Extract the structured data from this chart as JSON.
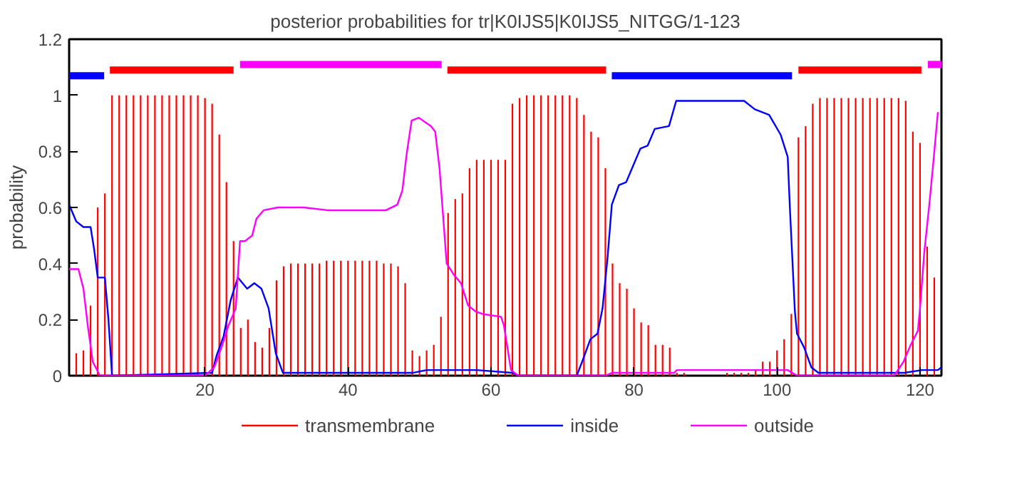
{
  "chart_data": {
    "type": "bar",
    "title": "posterior probabilities for tr|K0IJS5|K0IJS5_NITGG/1-123",
    "ylabel": "probability",
    "xlim": [
      1,
      123
    ],
    "xticks": [
      20,
      40,
      60,
      80,
      100,
      120
    ],
    "ylim": [
      0,
      1.2
    ],
    "yticks": [
      0,
      0.2,
      0.4,
      0.6,
      0.8,
      1,
      1.2
    ],
    "legend": "bottom",
    "series": [
      {
        "name": "transmembrane",
        "color": "#ff0000",
        "x": [
          2,
          3,
          4,
          5,
          6,
          7,
          8,
          9,
          10,
          11,
          12,
          13,
          14,
          15,
          16,
          17,
          18,
          19,
          20,
          21,
          22,
          23,
          24,
          25,
          26,
          27,
          28,
          29,
          30,
          31,
          32,
          33,
          34,
          35,
          36,
          37,
          38,
          39,
          40,
          41,
          42,
          43,
          44,
          45,
          46,
          47,
          48,
          49,
          50,
          51,
          52,
          53,
          54,
          55,
          56,
          57,
          58,
          59,
          60,
          61,
          62,
          63,
          64,
          65,
          66,
          67,
          68,
          69,
          70,
          71,
          72,
          73,
          74,
          75,
          76,
          77,
          78,
          79,
          80,
          81,
          82,
          83,
          84,
          85,
          86,
          87,
          88,
          89,
          90,
          91,
          92,
          93,
          94,
          95,
          96,
          97,
          98,
          99,
          100,
          101,
          102,
          103,
          104,
          105,
          106,
          107,
          108,
          109,
          110,
          111,
          112,
          113,
          114,
          115,
          116,
          117,
          118,
          119,
          120,
          121,
          122
        ],
        "values": [
          0.08,
          0.09,
          0.25,
          0.6,
          0.65,
          1,
          1,
          1,
          1,
          1,
          1,
          1,
          1,
          1,
          1,
          1,
          1,
          1,
          0.99,
          0.97,
          0.86,
          0.69,
          0.48,
          0.17,
          0.2,
          0.12,
          0.1,
          0.17,
          0.34,
          0.39,
          0.4,
          0.4,
          0.4,
          0.4,
          0.4,
          0.41,
          0.41,
          0.41,
          0.41,
          0.41,
          0.41,
          0.41,
          0.41,
          0.4,
          0.4,
          0.39,
          0.33,
          0.09,
          0.07,
          0.09,
          0.11,
          0.21,
          0.58,
          0.63,
          0.65,
          0.74,
          0.77,
          0.77,
          0.77,
          0.77,
          0.77,
          0.97,
          0.99,
          1,
          1,
          1,
          1,
          1,
          1,
          1,
          0.99,
          0.93,
          0.87,
          0.85,
          0.74,
          0.4,
          0.33,
          0.31,
          0.24,
          0.19,
          0.18,
          0.11,
          0.11,
          0.1,
          0.01,
          0.01,
          0,
          0,
          0,
          0,
          0,
          0.01,
          0.01,
          0.01,
          0.01,
          0.02,
          0.05,
          0.05,
          0.09,
          0.13,
          0.22,
          0.85,
          0.89,
          0.97,
          0.99,
          0.99,
          0.99,
          0.99,
          0.99,
          0.99,
          0.99,
          0.99,
          0.99,
          0.99,
          0.99,
          0.99,
          0.98,
          0.87,
          0.83,
          0.46,
          0.35
        ]
      },
      {
        "name": "inside",
        "type": "line",
        "color": "#0000ff",
        "x": [
          1,
          2,
          3,
          4,
          4.5,
          5,
          6,
          6.5,
          7,
          21,
          21.6,
          22.6,
          23.6,
          24.6,
          25.9,
          26.9,
          27.9,
          28.9,
          29.9,
          30.9,
          48,
          49,
          51,
          58,
          63,
          64,
          72,
          72.9,
          73.9,
          74.9,
          75.6,
          76.3,
          76.9,
          77.9,
          78.9,
          79.9,
          80.9,
          81.9,
          82.9,
          84.9,
          85.9,
          95.4,
          96.9,
          98.9,
          100.5,
          101.5,
          101.8,
          102.5,
          102.8,
          103.8,
          104.8,
          105.8,
          116.7,
          117.7,
          120.3,
          121.3,
          122.5,
          123
        ],
        "values": [
          0.61,
          0.55,
          0.53,
          0.53,
          0.45,
          0.35,
          0.35,
          0.2,
          0,
          0.01,
          0.07,
          0.14,
          0.27,
          0.35,
          0.31,
          0.33,
          0.31,
          0.24,
          0.08,
          0.01,
          0.01,
          0.01,
          0.02,
          0.02,
          0.01,
          0,
          0,
          0.06,
          0.13,
          0.15,
          0.24,
          0.42,
          0.61,
          0.68,
          0.69,
          0.75,
          0.81,
          0.82,
          0.88,
          0.89,
          0.98,
          0.98,
          0.95,
          0.93,
          0.86,
          0.78,
          0.6,
          0.23,
          0.15,
          0.1,
          0.03,
          0.01,
          0.01,
          0.01,
          0.02,
          0.02,
          0.02,
          0.03
        ]
      },
      {
        "name": "outside",
        "type": "line",
        "color": "#ff00ff",
        "x": [
          1,
          2.3,
          3,
          3.6,
          4.3,
          5.3,
          20,
          21.3,
          22.3,
          23.3,
          24.3,
          24.9,
          25.6,
          26.6,
          27.2,
          28.2,
          30.2,
          33.8,
          37.1,
          45.3,
          46.9,
          47.6,
          48.2,
          48.9,
          49.9,
          51.6,
          52.2,
          52.8,
          53.8,
          54.8,
          55.8,
          56.8,
          57.8,
          58.8,
          61.4,
          61.8,
          62.8,
          63.8,
          76,
          76.9,
          81.9,
          82.6,
          85.6,
          86,
          101.5,
          102.8,
          116.4,
          117.7,
          118.7,
          119.7,
          120,
          120.6,
          121.3,
          121.9,
          122.5
        ],
        "values": [
          0.38,
          0.38,
          0.31,
          0.18,
          0.05,
          0,
          0,
          0.03,
          0.1,
          0.18,
          0.24,
          0.48,
          0.48,
          0.5,
          0.56,
          0.59,
          0.6,
          0.6,
          0.59,
          0.59,
          0.61,
          0.66,
          0.79,
          0.91,
          0.92,
          0.89,
          0.87,
          0.74,
          0.4,
          0.36,
          0.33,
          0.25,
          0.23,
          0.22,
          0.21,
          0.18,
          0.02,
          0,
          0,
          0.01,
          0.01,
          0.01,
          0.01,
          0.02,
          0.02,
          0,
          0,
          0.05,
          0.11,
          0.16,
          0.24,
          0.44,
          0.61,
          0.77,
          0.94
        ]
      },
      {
        "type": "line",
        "color": "#ff0000",
        "x": [
          6.7,
          24
        ],
        "values": [
          1.09,
          1.09
        ]
      },
      {
        "type": "line",
        "color": "#ff0000",
        "x": [
          53.9,
          76.1
        ],
        "values": [
          1.09,
          1.09
        ]
      },
      {
        "type": "line",
        "color": "#ff0000",
        "x": [
          103,
          120.2
        ],
        "values": [
          1.09,
          1.09
        ]
      },
      {
        "type": "line",
        "color": "#0000ff",
        "x": [
          1,
          5.9
        ],
        "values": [
          1.07,
          1.07
        ]
      },
      {
        "type": "line",
        "color": "#0000ff",
        "x": [
          76.9,
          102.1
        ],
        "values": [
          1.07,
          1.07
        ]
      },
      {
        "type": "line",
        "color": "#ff00ff",
        "x": [
          24.9,
          53.1
        ],
        "values": [
          1.11,
          1.11
        ]
      },
      {
        "type": "line",
        "color": "#ff00ff",
        "x": [
          121.1,
          123
        ],
        "values": [
          1.11,
          1.11
        ]
      }
    ]
  }
}
